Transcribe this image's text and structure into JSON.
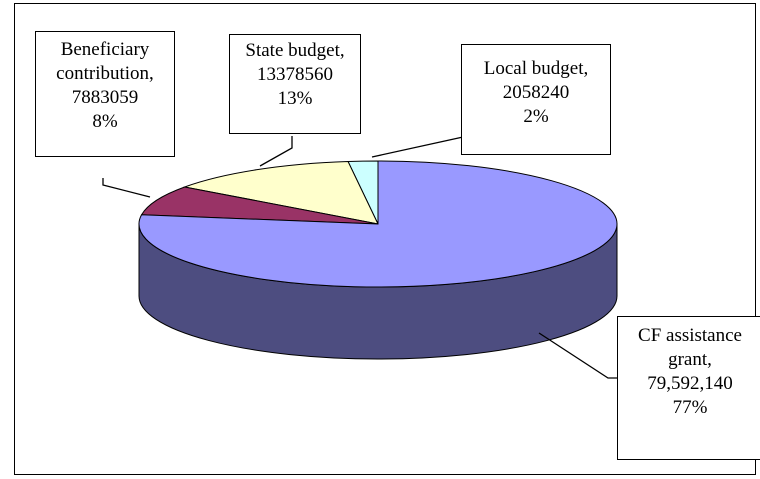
{
  "chart_data": {
    "type": "pie",
    "title": "",
    "slices": [
      {
        "label_lines": [
          "Beneficiary",
          "contribution,",
          "7883059",
          "8%"
        ],
        "value": 7883059,
        "percent": "8%",
        "color": "#993366"
      },
      {
        "label_lines": [
          "State budget,",
          "13378560",
          "13%"
        ],
        "value": 13378560,
        "percent": "13%",
        "color": "#ffffcc"
      },
      {
        "label_lines": [
          "Local budget,",
          "2058240",
          "2%"
        ],
        "value": 2058240,
        "percent": "2%",
        "color": "#ccffff"
      },
      {
        "label_lines": [
          "CF assistance",
          "grant,",
          "79,592,140",
          "77%"
        ],
        "value": 79592140,
        "percent": "77%",
        "color": "#9999ff"
      }
    ],
    "legend": "none",
    "style": "3d-pie"
  }
}
